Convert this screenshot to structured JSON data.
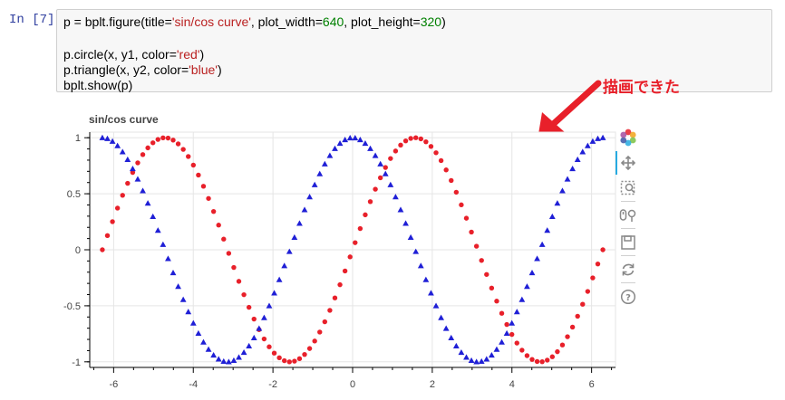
{
  "cell": {
    "prompt": "In [7]:",
    "code": {
      "line1": {
        "a": "p = bplt.figure(title=",
        "title_str": "'sin/cos curve'",
        "b": ", plot_width=",
        "width_num": "640",
        "c": ", plot_height=",
        "height_num": "320",
        "d": ")"
      },
      "line2": {
        "a": "p.circle(x, y1, color=",
        "s": "'red'",
        "b": ")"
      },
      "line3": {
        "a": "p.triangle(x, y2, color=",
        "s": "'blue'",
        "b": ")"
      },
      "line4": "bplt.show(p)"
    }
  },
  "annotation": "描画できた",
  "toolbar": {
    "tools": [
      "bokeh-logo-icon",
      "pan-icon",
      "box-zoom-icon",
      "wheel-zoom-icon",
      "save-icon",
      "reset-icon",
      "help-icon"
    ]
  },
  "chart_data": {
    "type": "scatter",
    "title": "sin/cos curve",
    "xlabel": "",
    "ylabel": "",
    "xlim": [
      -6.6,
      6.6
    ],
    "ylim": [
      -1.05,
      1.05
    ],
    "x_ticks": [
      -6,
      -4,
      -2,
      0,
      2,
      4,
      6
    ],
    "y_ticks": [
      1,
      0.5,
      0,
      -0.5,
      -1
    ],
    "x_tick_labels": [
      "-6",
      "-4",
      "-2",
      "0",
      "2",
      "4",
      "6"
    ],
    "y_tick_labels": [
      "1",
      "0.5",
      "0",
      "-0.5",
      "-1"
    ],
    "x_range": [
      -6.283185,
      6.283185
    ],
    "n_points": 100,
    "grid": true,
    "legend": "none",
    "series": [
      {
        "glyph": "circle",
        "color": "#e8202a",
        "function": "sin(x)"
      },
      {
        "glyph": "triangle",
        "color": "#1f1fd6",
        "function": "cos(x)"
      }
    ]
  }
}
